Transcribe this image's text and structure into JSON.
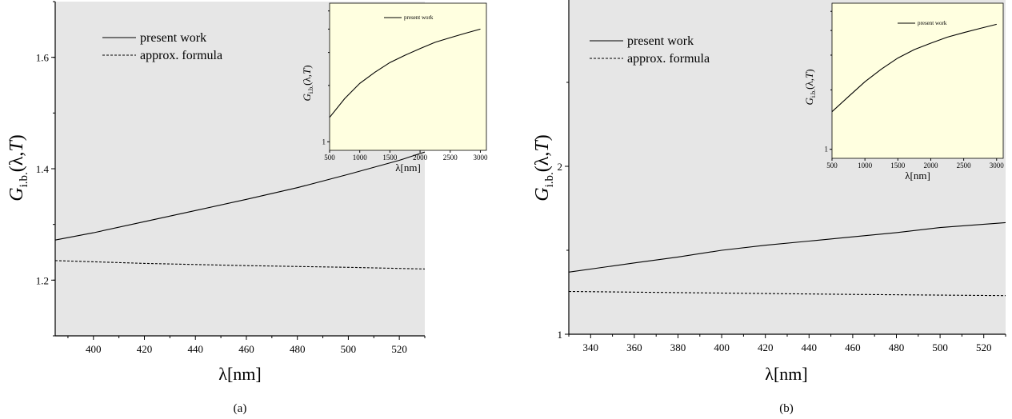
{
  "colors": {
    "plot_background": "#e6e6e6",
    "inset_background": "#ffffe0",
    "line": "#000000"
  },
  "chart_data": [
    {
      "type": "line",
      "caption": "(a)",
      "xlabel": "λ[nm]",
      "ylabel": {
        "main": "G",
        "sub": "i.b.",
        "rest": "(λ,T)"
      },
      "xlim": [
        385,
        530
      ],
      "ylim": [
        1.1,
        1.7
      ],
      "x_ticks": [
        {
          "v": 400,
          "label": "400"
        },
        {
          "v": 420,
          "label": "420"
        },
        {
          "v": 440,
          "label": "440"
        },
        {
          "v": 460,
          "label": "460"
        },
        {
          "v": 480,
          "label": "480"
        },
        {
          "v": 500,
          "label": "500"
        },
        {
          "v": 520,
          "label": "520"
        }
      ],
      "y_ticks": [
        {
          "v": 1.2,
          "label": "1.2"
        },
        {
          "v": 1.4,
          "label": "1.4"
        },
        {
          "v": 1.6,
          "label": "1.6"
        }
      ],
      "legend": {
        "position": "top-left",
        "entries": [
          "present work",
          "approx. formula"
        ]
      },
      "series": [
        {
          "name": "present work",
          "style": "solid",
          "x": [
            385,
            400,
            420,
            440,
            460,
            480,
            500,
            520,
            530
          ],
          "y": [
            1.272,
            1.285,
            1.305,
            1.325,
            1.345,
            1.366,
            1.39,
            1.415,
            1.43
          ]
        },
        {
          "name": "approx. formula",
          "style": "dashed",
          "x": [
            385,
            420,
            460,
            500,
            530
          ],
          "y": [
            1.235,
            1.23,
            1.226,
            1.223,
            1.22
          ]
        }
      ],
      "inset": {
        "xlabel": "λ[nm]",
        "ylabel": {
          "main": "G",
          "sub": "i.b.",
          "rest": "(λ,T)"
        },
        "xlim": [
          500,
          3100
        ],
        "ylim": [
          0.9,
          5.5
        ],
        "log_y": true,
        "x_ticks": [
          {
            "v": 500,
            "label": "500"
          },
          {
            "v": 1000,
            "label": "1000"
          },
          {
            "v": 1500,
            "label": "1500"
          },
          {
            "v": 2000,
            "label": "2000"
          },
          {
            "v": 2500,
            "label": "2500"
          },
          {
            "v": 3000,
            "label": "3000"
          }
        ],
        "y_ticks": [
          {
            "v": 1,
            "label": "1"
          }
        ],
        "legend": {
          "position": "top-center",
          "entries": [
            "present work"
          ]
        },
        "series": [
          {
            "name": "present work",
            "x": [
              500,
              750,
              1000,
              1250,
              1500,
              1750,
              2000,
              2250,
              2500,
              2750,
              3000
            ],
            "y": [
              1.35,
              1.7,
              2.05,
              2.35,
              2.65,
              2.9,
              3.15,
              3.4,
              3.6,
              3.8,
              4.0
            ]
          }
        ]
      }
    },
    {
      "type": "line",
      "caption": "(b)",
      "xlabel": "λ[nm]",
      "ylabel": {
        "main": "G",
        "sub": "i.b.",
        "rest": "(λ,T)"
      },
      "xlim": [
        330,
        530
      ],
      "ylim": [
        1.0,
        3.0
      ],
      "x_ticks": [
        {
          "v": 340,
          "label": "340"
        },
        {
          "v": 360,
          "label": "360"
        },
        {
          "v": 380,
          "label": "380"
        },
        {
          "v": 400,
          "label": "400"
        },
        {
          "v": 420,
          "label": "420"
        },
        {
          "v": 440,
          "label": "440"
        },
        {
          "v": 460,
          "label": "460"
        },
        {
          "v": 480,
          "label": "480"
        },
        {
          "v": 500,
          "label": "500"
        },
        {
          "v": 520,
          "label": "520"
        }
      ],
      "y_ticks": [
        {
          "v": 1,
          "label": "1"
        },
        {
          "v": 2,
          "label": "2"
        }
      ],
      "legend": {
        "position": "top-left",
        "entries": [
          "present work",
          "approx. formula"
        ]
      },
      "series": [
        {
          "name": "present work",
          "style": "solid",
          "x": [
            330,
            360,
            380,
            400,
            420,
            440,
            460,
            480,
            500,
            530
          ],
          "y": [
            1.37,
            1.425,
            1.46,
            1.5,
            1.53,
            1.555,
            1.58,
            1.605,
            1.635,
            1.665
          ]
        },
        {
          "name": "approx. formula",
          "style": "dashed",
          "x": [
            330,
            400,
            460,
            530
          ],
          "y": [
            1.255,
            1.245,
            1.237,
            1.23
          ]
        }
      ],
      "inset": {
        "xlabel": "λ[nm]",
        "ylabel": {
          "main": "G",
          "sub": "i.b.",
          "rest": "(λ,T)"
        },
        "xlim": [
          500,
          3100
        ],
        "ylim": [
          0.9,
          5.5
        ],
        "log_y": true,
        "x_ticks": [
          {
            "v": 500,
            "label": "500"
          },
          {
            "v": 1000,
            "label": "1000"
          },
          {
            "v": 1500,
            "label": "1500"
          },
          {
            "v": 2000,
            "label": "2000"
          },
          {
            "v": 2500,
            "label": "2500"
          },
          {
            "v": 3000,
            "label": "3000"
          }
        ],
        "y_ticks": [
          {
            "v": 1,
            "label": "1"
          }
        ],
        "legend": {
          "position": "top-center",
          "entries": [
            "present work"
          ]
        },
        "series": [
          {
            "name": "present work",
            "x": [
              500,
              750,
              1000,
              1250,
              1500,
              1750,
              2000,
              2250,
              2500,
              2750,
              3000
            ],
            "y": [
              1.55,
              1.85,
              2.2,
              2.55,
              2.9,
              3.2,
              3.45,
              3.7,
              3.9,
              4.1,
              4.3
            ]
          }
        ]
      }
    }
  ]
}
